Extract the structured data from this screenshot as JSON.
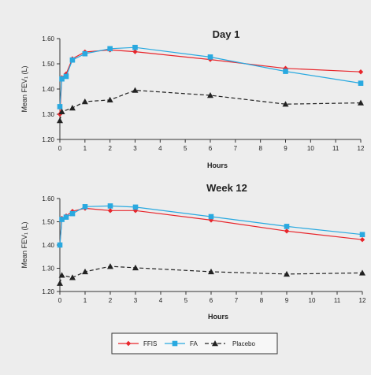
{
  "colors": {
    "background": "#ededed",
    "axis": "#333333",
    "FFIS": "#e8252b",
    "FA": "#29a9e0",
    "Placebo": "#222222"
  },
  "chart_data": [
    {
      "type": "line",
      "title": "Day 1",
      "xlabel": "Hours",
      "ylabel": "Mean FEV₁ (L)",
      "xlim": [
        0,
        12
      ],
      "ylim": [
        1.2,
        1.6
      ],
      "xticks": [
        0,
        1,
        2,
        3,
        4,
        5,
        6,
        7,
        8,
        9,
        10,
        11,
        12
      ],
      "yticks": [
        1.2,
        1.3,
        1.4,
        1.5,
        1.6
      ],
      "ytick_labels": [
        "1.20",
        "1.30",
        "1.40",
        "1.50",
        "1.60"
      ],
      "grid": false,
      "series": [
        {
          "name": "FFIS",
          "marker": "diamond",
          "style": "solid",
          "x": [
            0,
            0.08,
            0.25,
            0.5,
            1,
            2,
            3,
            6,
            9,
            12
          ],
          "y": [
            1.3,
            1.445,
            1.46,
            1.52,
            1.547,
            1.555,
            1.548,
            1.517,
            1.482,
            1.468
          ]
        },
        {
          "name": "FA",
          "marker": "square",
          "style": "solid",
          "x": [
            0,
            0.08,
            0.25,
            0.5,
            1,
            2,
            3,
            6,
            9,
            12
          ],
          "y": [
            1.33,
            1.44,
            1.45,
            1.515,
            1.54,
            1.56,
            1.565,
            1.527,
            1.47,
            1.423
          ]
        },
        {
          "name": "Placebo",
          "marker": "triangle",
          "style": "dashed",
          "x": [
            0,
            0.08,
            0.5,
            1,
            2,
            3,
            6,
            9,
            12
          ],
          "y": [
            1.275,
            1.31,
            1.325,
            1.35,
            1.357,
            1.395,
            1.375,
            1.34,
            1.345
          ]
        }
      ]
    },
    {
      "type": "line",
      "title": "Week 12",
      "xlabel": "Hours",
      "ylabel": "Mean FEV₁ (L)",
      "xlim": [
        0,
        12
      ],
      "ylim": [
        1.2,
        1.6
      ],
      "xticks": [
        0,
        1,
        2,
        3,
        4,
        5,
        6,
        7,
        8,
        9,
        10,
        11,
        12
      ],
      "yticks": [
        1.2,
        1.3,
        1.4,
        1.5,
        1.6
      ],
      "ytick_labels": [
        "1.20",
        "1.30",
        "1.40",
        "1.50",
        "1.60"
      ],
      "grid": false,
      "series": [
        {
          "name": "FFIS",
          "marker": "diamond",
          "style": "solid",
          "x": [
            0,
            0.08,
            0.25,
            0.5,
            1,
            2,
            3,
            6,
            9,
            12
          ],
          "y": [
            1.4,
            1.515,
            1.525,
            1.545,
            1.558,
            1.548,
            1.548,
            1.507,
            1.46,
            1.423
          ]
        },
        {
          "name": "FA",
          "marker": "square",
          "style": "solid",
          "x": [
            0,
            0.08,
            0.25,
            0.5,
            1,
            2,
            3,
            6,
            9,
            12
          ],
          "y": [
            1.4,
            1.51,
            1.52,
            1.535,
            1.565,
            1.568,
            1.563,
            1.522,
            1.48,
            1.445
          ]
        },
        {
          "name": "Placebo",
          "marker": "triangle",
          "style": "dashed",
          "x": [
            0,
            0.08,
            0.5,
            1,
            2,
            3,
            6,
            9,
            12
          ],
          "y": [
            1.235,
            1.27,
            1.26,
            1.285,
            1.308,
            1.302,
            1.285,
            1.275,
            1.28
          ]
        }
      ]
    }
  ],
  "legend": {
    "position": "bottom-center",
    "items": [
      {
        "label": "FFIS",
        "marker": "diamond",
        "style": "solid"
      },
      {
        "label": "FA",
        "marker": "square",
        "style": "solid"
      },
      {
        "label": "Placebo",
        "marker": "triangle",
        "style": "dashed"
      }
    ]
  }
}
